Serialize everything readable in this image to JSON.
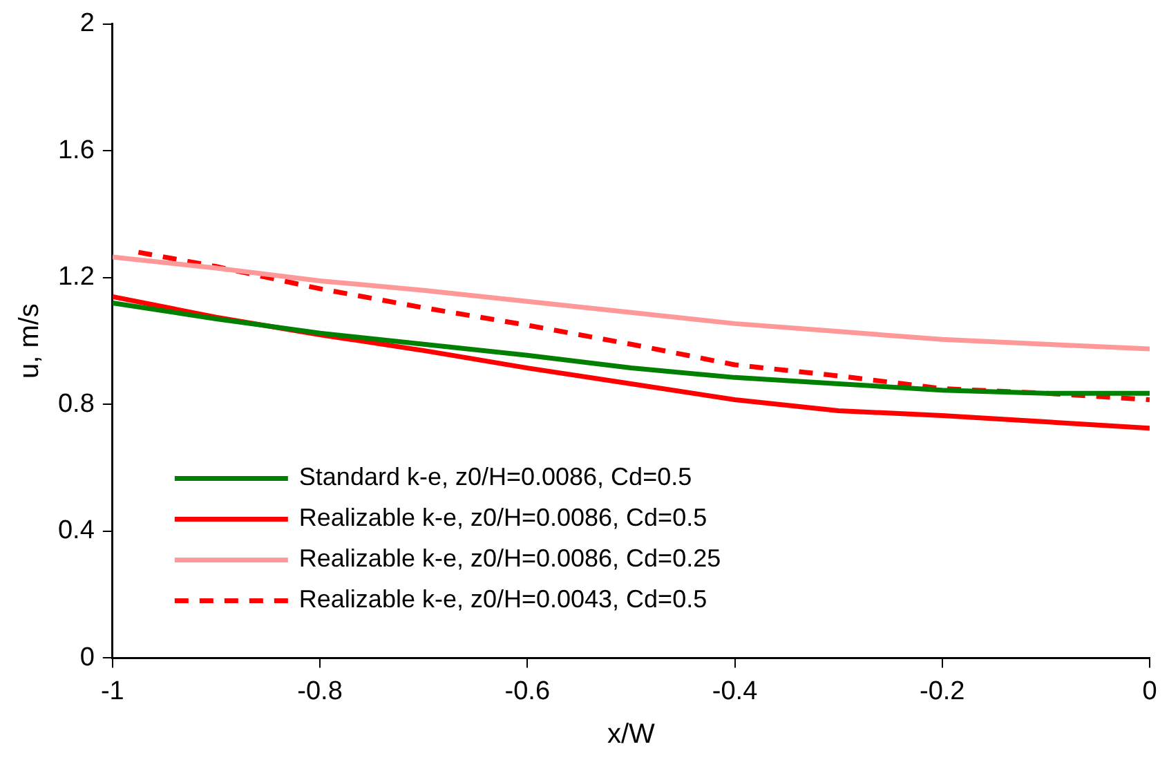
{
  "chart_data": {
    "type": "line",
    "xlabel": "x/W",
    "ylabel": "u, m/s",
    "xlim": [
      -1,
      0
    ],
    "xticks": [
      -1,
      -0.8,
      -0.6,
      -0.4,
      -0.2,
      0
    ],
    "ylim": [
      0,
      2
    ],
    "yticks": [
      0,
      0.4,
      0.8,
      1.2,
      1.6,
      2
    ],
    "x": [
      -1,
      -0.9,
      -0.8,
      -0.7,
      -0.6,
      -0.5,
      -0.4,
      -0.3,
      -0.2,
      -0.1,
      0
    ],
    "grid": false,
    "legend": "bottom left",
    "marker": "none",
    "series": [
      {
        "name": "Standard k-e, z0/H=0.0086, Cd=0.5",
        "color": "#008000",
        "line_style": "solid",
        "values": [
          1.12,
          1.07,
          1.025,
          0.99,
          0.955,
          0.915,
          0.885,
          0.865,
          0.845,
          0.835,
          0.835
        ]
      },
      {
        "name": "Realizable k-e, z0/H=0.0086, Cd=0.5",
        "color": "#ff0000",
        "line_style": "solid",
        "values": [
          1.14,
          1.075,
          1.02,
          0.97,
          0.915,
          0.865,
          0.815,
          0.78,
          0.765,
          0.745,
          0.725
        ]
      },
      {
        "name": "Realizable k-e, z0/H=0.0086, Cd=0.25",
        "color": "#ff9999",
        "line_style": "solid",
        "values": [
          1.265,
          1.23,
          1.19,
          1.16,
          1.125,
          1.09,
          1.055,
          1.03,
          1.005,
          0.99,
          0.975
        ]
      },
      {
        "name": "Realizable k-e, z0/H=0.0043, Cd=0.5",
        "color": "#ff0000",
        "line_style": "dashed",
        "x": [
          -0.975,
          -0.9,
          -0.8,
          -0.7,
          -0.6,
          -0.5,
          -0.4,
          -0.3,
          -0.2,
          -0.1,
          0
        ],
        "values": [
          1.28,
          1.235,
          1.165,
          1.105,
          1.05,
          0.99,
          0.925,
          0.89,
          0.85,
          0.835,
          0.815
        ]
      }
    ]
  }
}
